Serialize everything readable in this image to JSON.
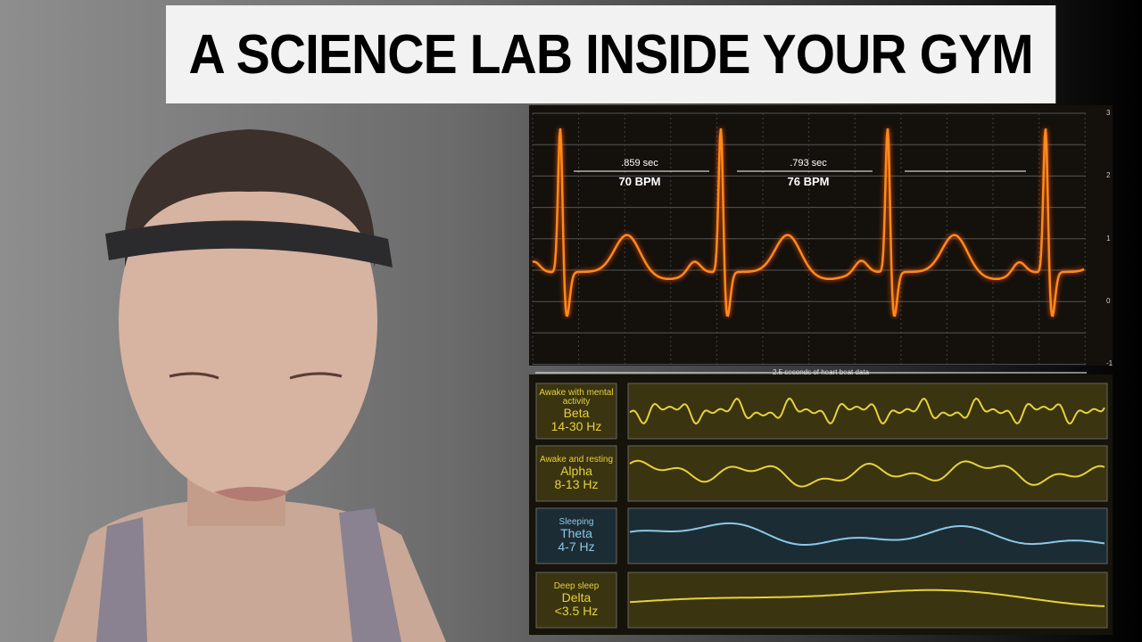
{
  "title": "A SCIENCE LAB INSIDE YOUR GYM",
  "ecg": {
    "yticks": [
      "3",
      "2",
      "1",
      "0",
      "-1"
    ],
    "intervals": [
      {
        "time": ".859 sec",
        "rate": "70 BPM"
      },
      {
        "time": ".793 sec",
        "rate": "76 BPM"
      }
    ],
    "caption": "2.5 seconds of heart beat data"
  },
  "eeg": [
    {
      "state": "Awake with mental activity",
      "band": "Beta",
      "range": "14-30 Hz"
    },
    {
      "state": "Awake and resting",
      "band": "Alpha",
      "range": "8-13 Hz"
    },
    {
      "state": "Sleeping",
      "band": "Theta",
      "range": "4-7 Hz"
    },
    {
      "state": "Deep sleep",
      "band": "Delta",
      "range": "<3.5 Hz"
    }
  ]
}
